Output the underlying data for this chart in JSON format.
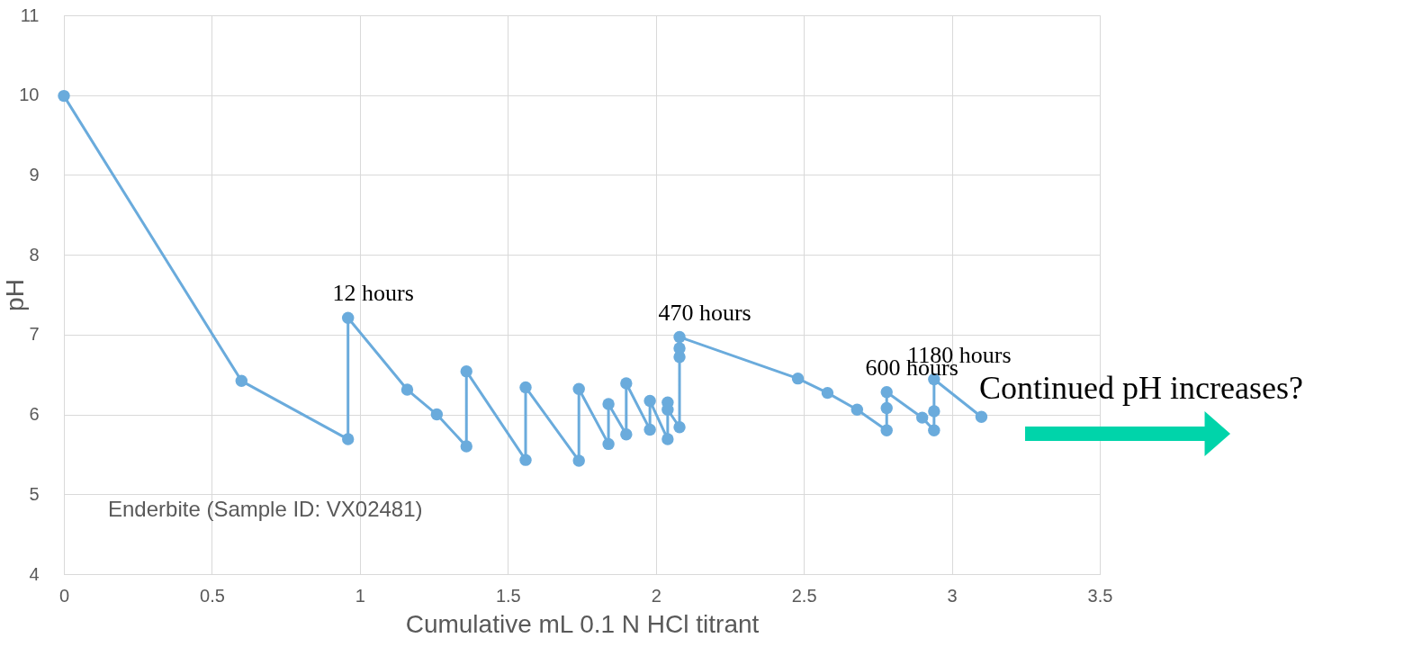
{
  "chart_data": {
    "type": "line",
    "xlabel": "Cumulative mL 0.1 N HCl titrant",
    "ylabel": "pH",
    "xlim": [
      0,
      3.5
    ],
    "xticks": [
      0,
      0.5,
      1,
      1.5,
      2,
      2.5,
      3,
      3.5
    ],
    "ylim": [
      4,
      11
    ],
    "yticks": [
      4,
      5,
      6,
      7,
      8,
      9,
      10,
      11
    ],
    "grid": true,
    "marker": "circle",
    "line_style": "solid",
    "series": [
      {
        "color": "#6aabdc",
        "x": [
          0,
          0.6,
          0.96,
          0.96,
          1.16,
          1.26,
          1.36,
          1.36,
          1.56,
          1.56,
          1.74,
          1.74,
          1.84,
          1.84,
          1.9,
          1.9,
          1.98,
          1.98,
          2.04,
          2.04,
          2.04,
          2.08,
          2.08,
          2.08,
          2.08,
          2.48,
          2.58,
          2.68,
          2.78,
          2.78,
          2.78,
          2.9,
          2.94,
          2.94,
          2.94,
          3.1
        ],
        "values": [
          9.99,
          6.42,
          5.69,
          7.21,
          6.31,
          6.0,
          5.6,
          6.54,
          5.43,
          6.34,
          5.42,
          6.32,
          5.63,
          6.13,
          5.75,
          6.39,
          5.81,
          6.17,
          5.69,
          6.15,
          6.06,
          5.84,
          6.72,
          6.83,
          6.97,
          6.45,
          6.27,
          6.06,
          5.8,
          6.08,
          6.28,
          5.96,
          5.8,
          6.04,
          6.44,
          5.97
        ]
      }
    ],
    "annotations": [
      {
        "text": "12 hours",
        "x": 0.96,
        "y": 7.21
      },
      {
        "text": "470 hours",
        "x": 2.08,
        "y": 6.97
      },
      {
        "text": "600 hours",
        "x": 2.78,
        "y": 6.28
      },
      {
        "text": "1180 hours",
        "x": 2.94,
        "y": 6.44
      },
      "Enderbite (Sample ID: VX02481)",
      "Continued pH increases?"
    ]
  }
}
